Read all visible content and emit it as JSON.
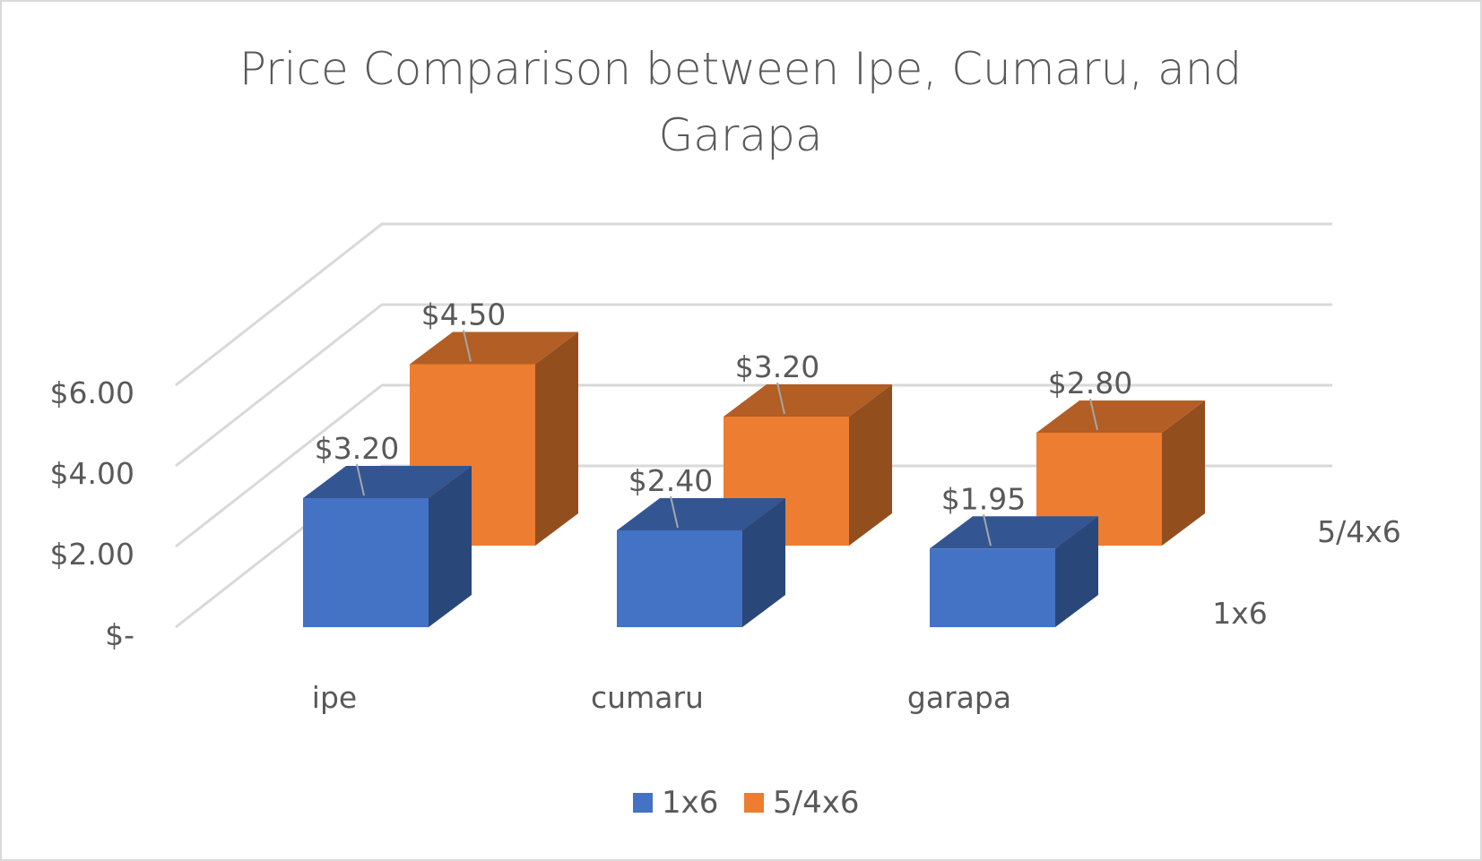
{
  "chart_data": {
    "type": "bar",
    "style": "3d-clustered-column",
    "title": "Price Comparison between Ipe, Cumaru, and Garapa",
    "title_lines": [
      "Price Comparison between Ipe, Cumaru, and",
      "Garapa"
    ],
    "categories": [
      "ipe",
      "cumaru",
      "garapa"
    ],
    "series": [
      {
        "name": "1x6",
        "values": [
          3.2,
          2.4,
          1.95
        ],
        "labels": [
          "$3.20",
          "$2.40",
          "$1.95"
        ],
        "color": "#4472C4"
      },
      {
        "name": "5/4x6",
        "values": [
          4.5,
          3.2,
          2.8
        ],
        "labels": [
          "$4.50",
          "$3.20",
          "$2.80"
        ],
        "color": "#ED7D31"
      }
    ],
    "y_ticks": [
      0,
      2,
      4,
      6
    ],
    "y_tick_labels": [
      "$-",
      "$2.00",
      "$4.00",
      "$6.00"
    ],
    "ylim": [
      0,
      6
    ],
    "depth_axis_labels": [
      "1x6",
      "5/4x6"
    ],
    "legend_position": "bottom",
    "legend": [
      {
        "name": "1x6",
        "color": "#4472C4"
      },
      {
        "name": "5/4x6",
        "color": "#ED7D31"
      }
    ],
    "xlabel": "",
    "ylabel": ""
  }
}
